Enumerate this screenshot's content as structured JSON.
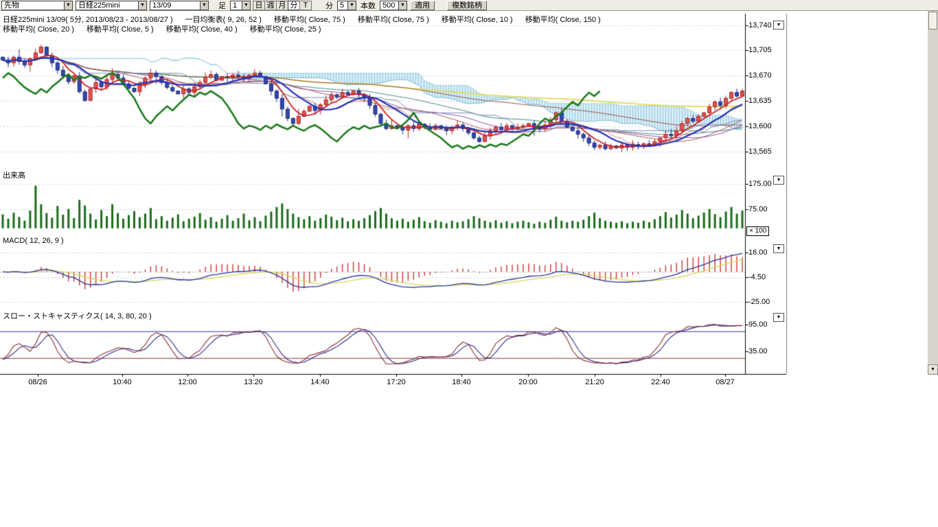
{
  "toolbar": {
    "category_select": "先物",
    "symbol_select": "日経225mini",
    "contract_select": "13/09",
    "bar_label": "足",
    "interval_value": "1",
    "period_buttons": [
      "日",
      "週",
      "月",
      "分",
      "T"
    ],
    "active_period": "分",
    "minute_label": "分",
    "minute_value": "5",
    "bars_label": "本数",
    "bars_value": "500",
    "apply_label": "適用",
    "multi_symbol_label": "複数銘柄"
  },
  "header": {
    "line1": [
      "日経225mini 13/09( 5分, 2013/08/23 - 2013/08/27 )",
      "一目均衡表( 9, 26, 52 )",
      "移動平均( Close, 75 )",
      "移動平均( Close, 75 )",
      "移動平均( Close, 10 )",
      "移動平均( Close, 150 )"
    ],
    "line2": [
      "移動平均( Close, 20 )",
      "移動平均( Close, 5 )",
      "移動平均( Close, 40 )",
      "移動平均( Close, 25 )"
    ]
  },
  "panels": {
    "volume_label": "出来高",
    "volume_multiplier": "× 100",
    "macd_label": "MACD( 12, 26, 9 )",
    "stoch_label": "スロー・ストキャスティクス( 14, 3, 80, 20 )"
  },
  "chart_data": [
    {
      "type": "candlestick",
      "title": "日経225mini 13/09( 5分 )",
      "symbol": "日経225mini 13/09",
      "period": "5分",
      "date_range": "2013/08/23 - 2013/08/27",
      "x_tick_labels": [
        "08/26",
        "10:40",
        "12:00",
        "13:20",
        "14:40",
        "17:20",
        "18:40",
        "20:00",
        "21:20",
        "22:40",
        "08/27"
      ],
      "y_tick_labels": [
        "13,740",
        "13,705",
        "13,670",
        "13,635",
        "13,600",
        "13,565"
      ],
      "y_tick_values": [
        13740,
        13705,
        13670,
        13635,
        13600,
        13565
      ],
      "ylim": [
        13548,
        13752
      ],
      "candle_colors": {
        "up": "#cc3333",
        "down": "#2a3fae"
      },
      "close": [
        13692,
        13688,
        13696,
        13690,
        13685,
        13694,
        13702,
        13710,
        13698,
        13688,
        13678,
        13670,
        13662,
        13670,
        13648,
        13636,
        13652,
        13661,
        13655,
        13665,
        13672,
        13667,
        13659,
        13653,
        13648,
        13658,
        13667,
        13674,
        13669,
        13661,
        13654,
        13649,
        13645,
        13652,
        13647,
        13655,
        13661,
        13668,
        13672,
        13664,
        13669,
        13667,
        13671,
        13669,
        13666,
        13671,
        13674,
        13669,
        13659,
        13649,
        13639,
        13624,
        13611,
        13604,
        13614,
        13621,
        13628,
        13622,
        13630,
        13637,
        13644,
        13641,
        13647,
        13644,
        13649,
        13644,
        13639,
        13629,
        13617,
        13604,
        13597,
        13601,
        13599,
        13595,
        13601,
        13597,
        13603,
        13599,
        13596,
        13601,
        13597,
        13594,
        13599,
        13602,
        13597,
        13591,
        13584,
        13579,
        13587,
        13594,
        13599,
        13596,
        13601,
        13597,
        13599,
        13601,
        13604,
        13599,
        13597,
        13602,
        13609,
        13619,
        13607,
        13599,
        13594,
        13589,
        13584,
        13577,
        13571,
        13574,
        13569,
        13573,
        13570,
        13574,
        13571,
        13575,
        13572,
        13576,
        13574,
        13579,
        13584,
        13589,
        13587,
        13594,
        13604,
        13611,
        13607,
        13614,
        13619,
        13627,
        13634,
        13629,
        13639,
        13647,
        13642,
        13649
      ],
      "overlays": [
        {
          "name": "ichimoku-senkou-a",
          "color": "#79b8d4"
        },
        {
          "name": "ichimoku-senkou-b",
          "color": "#a0cfe2"
        },
        {
          "name": "ichimoku-tenkan",
          "color": "#cc8866"
        },
        {
          "name": "ichimoku-kijun",
          "color": "#7788bb"
        },
        {
          "name": "ichimoku-chikou",
          "color": "#1c7a1c"
        },
        {
          "name": "ma5",
          "period": 5,
          "color": "#cc2222"
        },
        {
          "name": "ma10",
          "period": 10,
          "color": "#2233bb"
        },
        {
          "name": "ma20",
          "period": 20,
          "color": "#aa5555"
        },
        {
          "name": "ma25",
          "period": 25,
          "color": "#8855aa"
        },
        {
          "name": "ma40",
          "period": 40,
          "color": "#448888"
        },
        {
          "name": "ma75",
          "period": 75,
          "color": "#995544"
        },
        {
          "name": "ma150",
          "period": 150,
          "color": "#dede66"
        }
      ]
    },
    {
      "type": "bar",
      "title": "出来高",
      "unit_multiplier_label": "× 100",
      "y_tick_labels": [
        "175.00",
        "75.00"
      ],
      "y_tick_values": [
        175,
        75
      ],
      "color": "#1a6b1a",
      "values": [
        55,
        38,
        62,
        45,
        30,
        70,
        168,
        95,
        60,
        42,
        88,
        54,
        76,
        40,
        112,
        90,
        58,
        35,
        72,
        48,
        95,
        60,
        38,
        52,
        68,
        44,
        58,
        80,
        36,
        48,
        30,
        42,
        55,
        28,
        38,
        46,
        60,
        34,
        44,
        26,
        38,
        52,
        30,
        40,
        58,
        32,
        44,
        28,
        50,
        66,
        84,
        98,
        76,
        58,
        44,
        36,
        48,
        30,
        40,
        54,
        46,
        32,
        42,
        28,
        36,
        30,
        40,
        52,
        68,
        80,
        58,
        40,
        30,
        38,
        26,
        34,
        44,
        28,
        22,
        32,
        26,
        20,
        30,
        24,
        28,
        36,
        48,
        40,
        30,
        24,
        32,
        22,
        28,
        20,
        26,
        30,
        24,
        18,
        26,
        22,
        34,
        46,
        30,
        24,
        30,
        26,
        34,
        48,
        62,
        40,
        30,
        26,
        22,
        28,
        20,
        26,
        22,
        30,
        24,
        36,
        48,
        64,
        42,
        54,
        72,
        58,
        40,
        50,
        62,
        76,
        56,
        44,
        66,
        84,
        58,
        70
      ]
    },
    {
      "type": "line",
      "title": "MACD( 12, 26, 9 )",
      "params": {
        "fast": 12,
        "slow": 26,
        "signal": 9
      },
      "y_tick_labels": [
        "16.00",
        "-4.50",
        "-25.00"
      ],
      "y_tick_values": [
        16,
        -4.5,
        -25
      ],
      "colors": {
        "macd": "#223399",
        "signal": "#d8d855",
        "histogram": "#cc3333"
      },
      "derived_from": "chart_data[0].close"
    },
    {
      "type": "line",
      "title": "スロー・ストキャスティクス( 14, 3, 80, 20 )",
      "params": {
        "k": 14,
        "d": 3,
        "upper": 80,
        "lower": 20
      },
      "y_tick_labels": [
        "95.00",
        "35.00"
      ],
      "y_tick_values": [
        95,
        35
      ],
      "hlines": [
        80,
        20
      ],
      "colors": {
        "k": "#8b2a2a",
        "d": "#26268b",
        "upper_line": "#3333aa",
        "lower_line": "#8b3333"
      },
      "derived_from": "chart_data[0].close"
    }
  ]
}
